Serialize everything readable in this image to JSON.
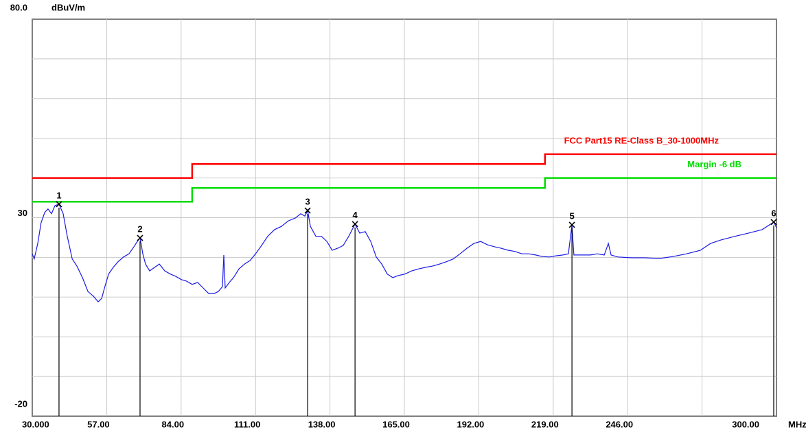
{
  "chart_data": {
    "type": "line",
    "y_axis_label": "dBuV/m",
    "x_axis_label": "MHz",
    "xlim": [
      30,
      300
    ],
    "ylim": [
      -20,
      80
    ],
    "xticks": [
      {
        "value": 30,
        "label": "30.000"
      },
      {
        "value": 57,
        "label": "57.00"
      },
      {
        "value": 84,
        "label": "84.00"
      },
      {
        "value": 111,
        "label": "111.00"
      },
      {
        "value": 138,
        "label": "138.00"
      },
      {
        "value": 165,
        "label": "165.00"
      },
      {
        "value": 192,
        "label": "192.00"
      },
      {
        "value": 219,
        "label": "219.00"
      },
      {
        "value": 246,
        "label": "246.00"
      },
      {
        "value": 273,
        "label": null
      },
      {
        "value": 300,
        "label": "300.00"
      }
    ],
    "yticks": [
      {
        "value": 80,
        "label": "80.0"
      },
      {
        "value": 70,
        "label": null
      },
      {
        "value": 60,
        "label": null
      },
      {
        "value": 50,
        "label": null
      },
      {
        "value": 40,
        "label": null
      },
      30,
      {
        "value": 20,
        "label": null
      },
      {
        "value": 10,
        "label": null
      },
      {
        "value": 0,
        "label": null
      },
      {
        "value": -10,
        "label": null
      },
      -20
    ],
    "grid": true,
    "series": [
      {
        "color": "#1a1ae6",
        "x": [
          30.0,
          30.7,
          32.0,
          33.2,
          34.5,
          35.7,
          37.0,
          38.2,
          39.7,
          41.2,
          42.7,
          44.5,
          46.2,
          48.2,
          50.2,
          52.2,
          53.9,
          55.2,
          56.2,
          57.7,
          59.4,
          61.1,
          63.1,
          65.1,
          66.9,
          68.1,
          69.1,
          70.1,
          71.1,
          72.6,
          74.4,
          76.1,
          78.1,
          80.1,
          82.1,
          84.1,
          86.0,
          88.0,
          90.0,
          92.0,
          94.0,
          96.0,
          97.5,
          99.0,
          99.5,
          100.0,
          101.5,
          103.0,
          105.0,
          107.0,
          109.0,
          111.0,
          112.9,
          115.4,
          117.9,
          120.4,
          122.9,
          125.4,
          127.4,
          128.9,
          129.9,
          130.9,
          132.9,
          134.9,
          136.9,
          138.8,
          140.8,
          142.8,
          144.8,
          147.1,
          148.8,
          150.8,
          152.8,
          154.8,
          156.8,
          158.8,
          160.8,
          162.7,
          165.2,
          167.7,
          170.2,
          172.7,
          175.2,
          177.7,
          180.2,
          182.7,
          185.2,
          187.7,
          190.2,
          192.7,
          195.1,
          197.6,
          200.1,
          202.6,
          205.1,
          207.6,
          210.1,
          212.6,
          215.1,
          217.6,
          220.0,
          222.5,
          224.5,
          225.8,
          226.5,
          230.0,
          232.5,
          235.0,
          237.5,
          239.0,
          240.0,
          242.5,
          247.4,
          252.4,
          257.4,
          262.4,
          267.4,
          272.4,
          276.1,
          279.9,
          284.9,
          289.8,
          294.8,
          299.0,
          300.0
        ],
        "values": [
          20.9,
          19.6,
          23.5,
          28.7,
          31.3,
          32.2,
          31.0,
          33.0,
          33.4,
          31.0,
          25.3,
          19.6,
          17.8,
          14.9,
          11.4,
          10.2,
          8.8,
          9.7,
          12.3,
          15.8,
          17.5,
          18.9,
          20.1,
          20.9,
          22.7,
          24.0,
          24.9,
          20.9,
          18.3,
          16.6,
          17.5,
          18.3,
          16.6,
          15.8,
          15.2,
          14.4,
          14.0,
          13.2,
          13.7,
          12.3,
          10.9,
          10.9,
          11.4,
          12.6,
          20.6,
          12.3,
          13.7,
          14.9,
          17.1,
          18.3,
          19.2,
          20.9,
          22.7,
          25.3,
          27.0,
          27.8,
          29.2,
          29.9,
          31.0,
          30.4,
          31.8,
          27.8,
          25.3,
          25.3,
          24.0,
          21.8,
          22.3,
          23.0,
          25.3,
          28.4,
          26.1,
          26.5,
          24.0,
          20.1,
          18.3,
          15.8,
          14.9,
          15.4,
          15.8,
          16.6,
          17.1,
          17.5,
          17.8,
          18.3,
          18.9,
          19.6,
          20.9,
          22.3,
          23.5,
          24.0,
          23.2,
          22.7,
          22.3,
          21.8,
          21.5,
          20.9,
          20.9,
          20.6,
          20.2,
          20.1,
          20.4,
          20.6,
          20.9,
          28.2,
          20.6,
          20.6,
          20.6,
          20.9,
          20.6,
          23.5,
          20.6,
          20.1,
          19.9,
          19.9,
          19.7,
          20.2,
          20.9,
          21.8,
          23.5,
          24.4,
          25.3,
          26.1,
          27.0,
          28.9,
          27.5
        ]
      },
      {
        "name": "FCC Part15 RE-Class B_30-1000MHz",
        "color": "#ff0000",
        "x": [
          30,
          88,
          88,
          216,
          216,
          300
        ],
        "values": [
          40.0,
          40.0,
          43.5,
          43.5,
          46.0,
          46.0
        ]
      },
      {
        "name": "Margin -6 dB",
        "color": "#00dd00",
        "x": [
          30,
          88,
          88,
          216,
          216,
          300
        ],
        "values": [
          34.0,
          34.0,
          37.5,
          37.5,
          40.0,
          40.0
        ]
      }
    ],
    "markers": {
      "labels": [
        "1",
        "2",
        "3",
        "4",
        "5",
        "6"
      ],
      "x": [
        39.7,
        69.1,
        129.9,
        147.1,
        225.8,
        299.0
      ],
      "values": [
        33.4,
        24.9,
        31.8,
        28.4,
        28.2,
        28.9
      ]
    }
  }
}
